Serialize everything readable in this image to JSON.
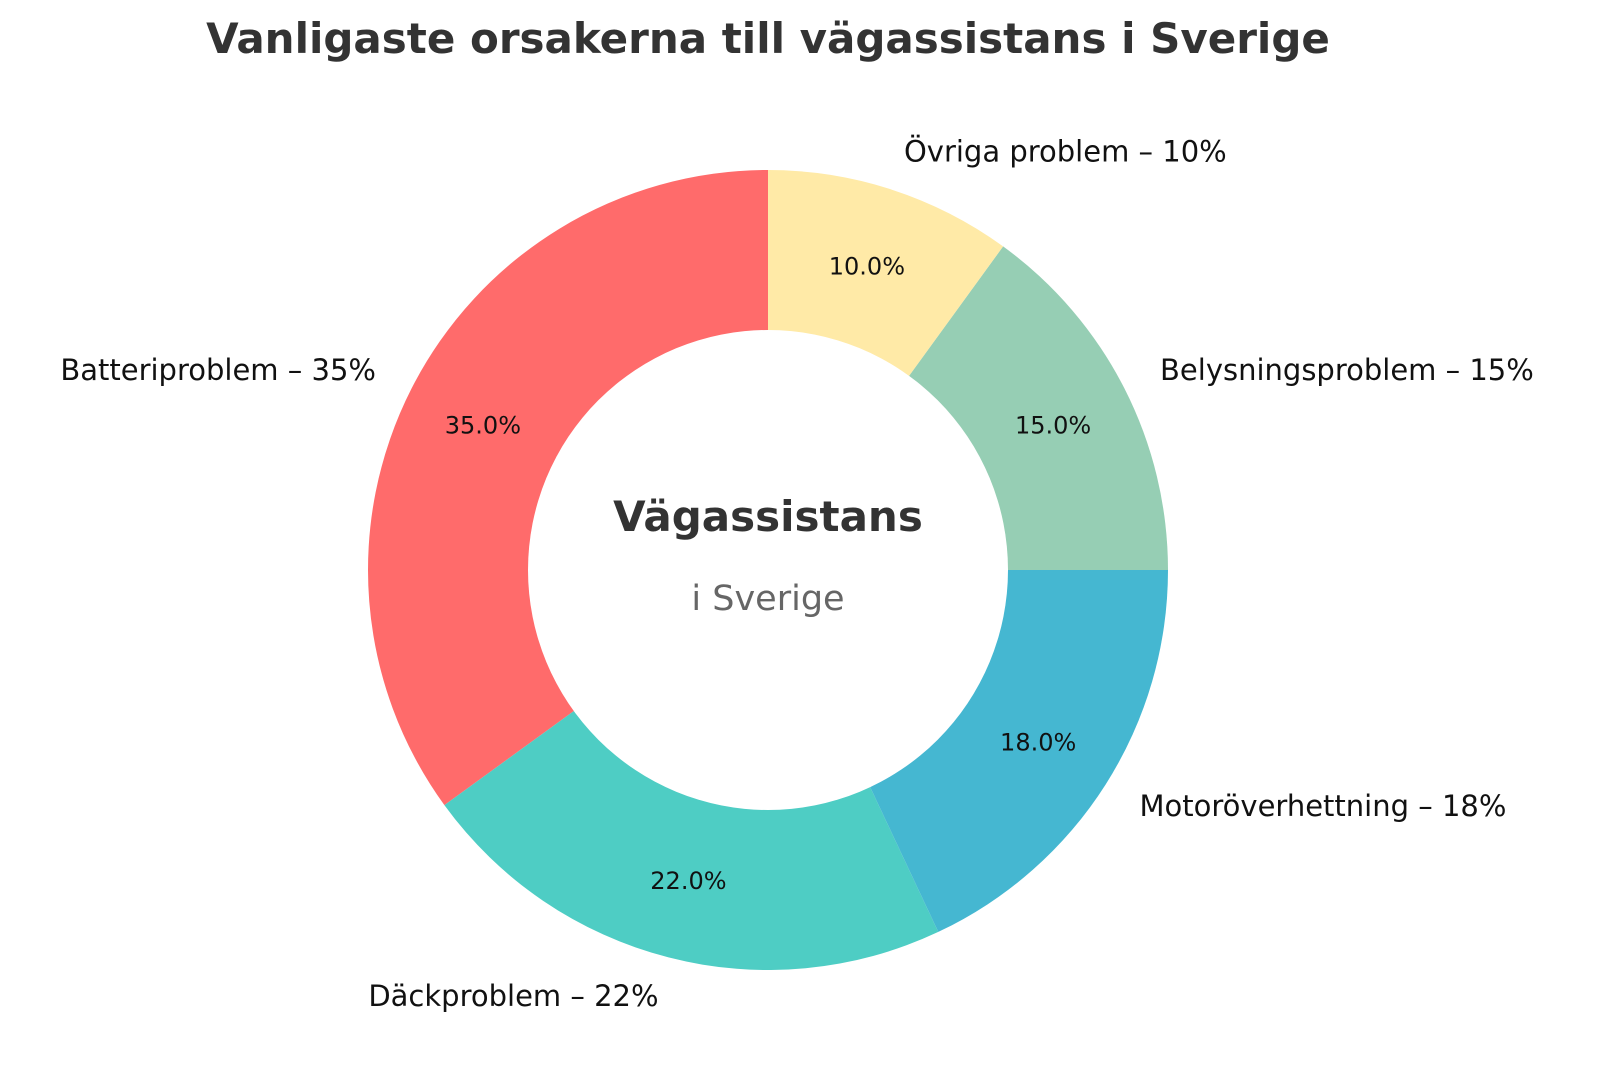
{
  "chart_data": {
    "type": "pie",
    "title": "Vanligaste orsakerna till vägassistans i Sverige",
    "center_title": "Vägassistans",
    "center_subtitle": "i Sverige",
    "slices": [
      {
        "label": "Batteriproblem – 35%",
        "value": 35,
        "pct_label": "35.0%",
        "color": "#ff6b6b"
      },
      {
        "label": "Däckproblem – 22%",
        "value": 22,
        "pct_label": "22.0%",
        "color": "#4ecdc4"
      },
      {
        "label": "Motoröverhettning – 18%",
        "value": 18,
        "pct_label": "18.0%",
        "color": "#45b7d1"
      },
      {
        "label": "Belysningsproblem – 15%",
        "value": 15,
        "pct_label": "15.0%",
        "color": "#96ceb4"
      },
      {
        "label": "Övriga problem – 10%",
        "value": 10,
        "pct_label": "10.0%",
        "color": "#ffeaa7"
      }
    ],
    "start_angle_deg": 90,
    "direction": "counterclockwise",
    "donut": true,
    "legend": "none"
  }
}
